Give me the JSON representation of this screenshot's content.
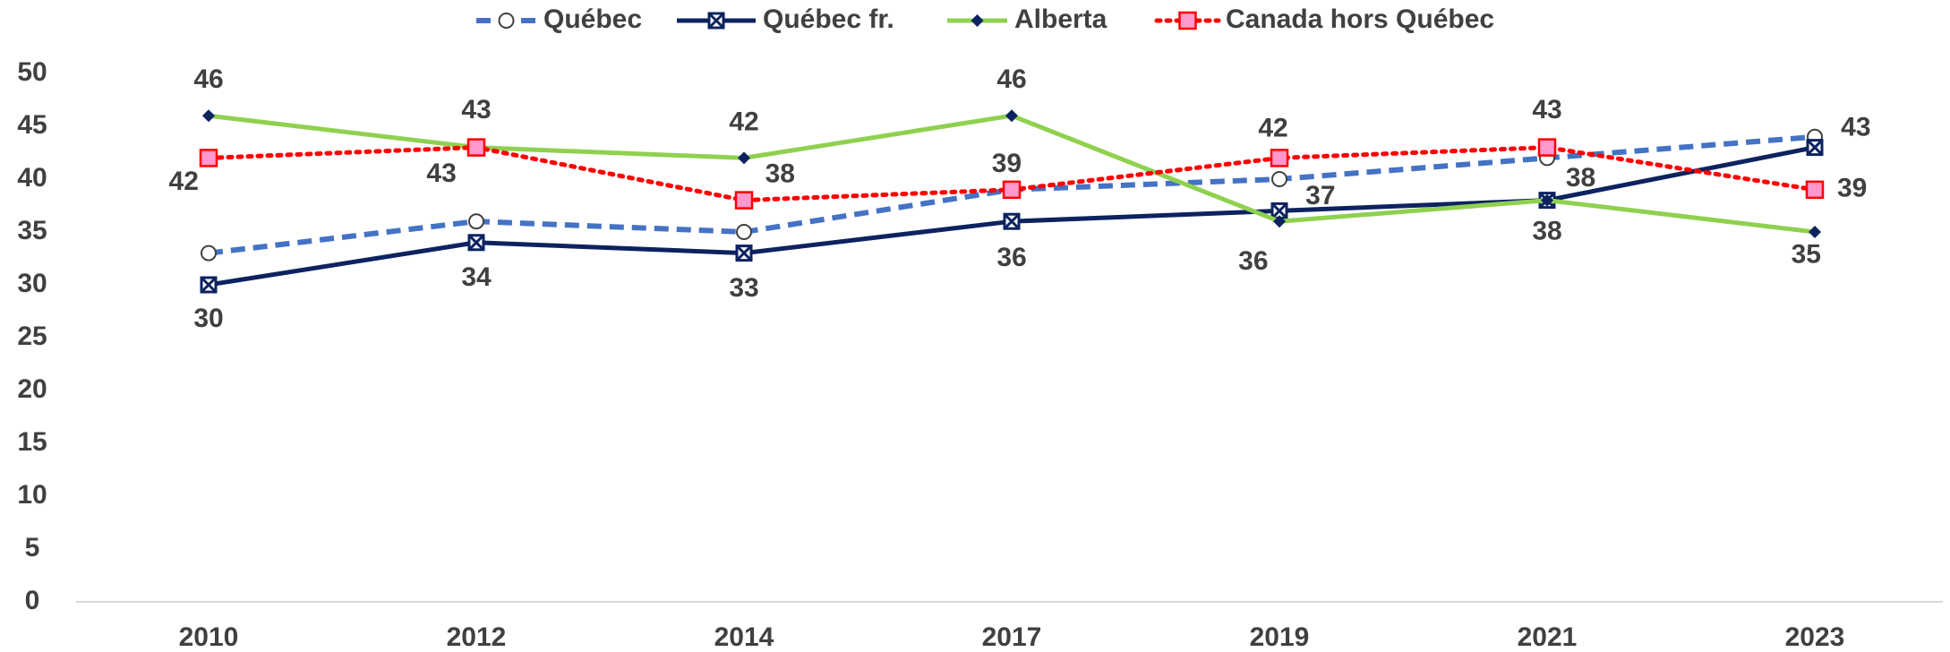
{
  "chart_data": {
    "type": "line",
    "categories": [
      "2010",
      "2012",
      "2014",
      "2017",
      "2019",
      "2021",
      "2023"
    ],
    "series": [
      {
        "name": "Québec",
        "color": "#4472c4",
        "line_style": "dashed",
        "marker": "circle",
        "data_labels": false,
        "values": [
          33,
          36,
          35,
          39,
          40,
          42,
          44
        ]
      },
      {
        "name": "Québec fr.",
        "color": "#0d2360",
        "line_style": "solid",
        "marker": "square-x",
        "data_labels": true,
        "values": [
          30,
          34,
          33,
          36,
          37,
          38,
          43
        ]
      },
      {
        "name": "Alberta",
        "color": "#8fd14f",
        "line_style": "solid",
        "marker": "diamond",
        "data_labels": true,
        "values": [
          46,
          43,
          42,
          46,
          36,
          38,
          35
        ]
      },
      {
        "name": "Canada hors Québec",
        "color": "#ff0000",
        "line_style": "dotted",
        "marker": "square",
        "data_labels": true,
        "values": [
          42,
          43,
          38,
          39,
          42,
          43,
          39
        ]
      }
    ],
    "ylim": [
      0,
      50
    ],
    "yticks": [
      0,
      5,
      10,
      15,
      20,
      25,
      30,
      35,
      40,
      45,
      50
    ],
    "grid": false,
    "legend": "top"
  }
}
